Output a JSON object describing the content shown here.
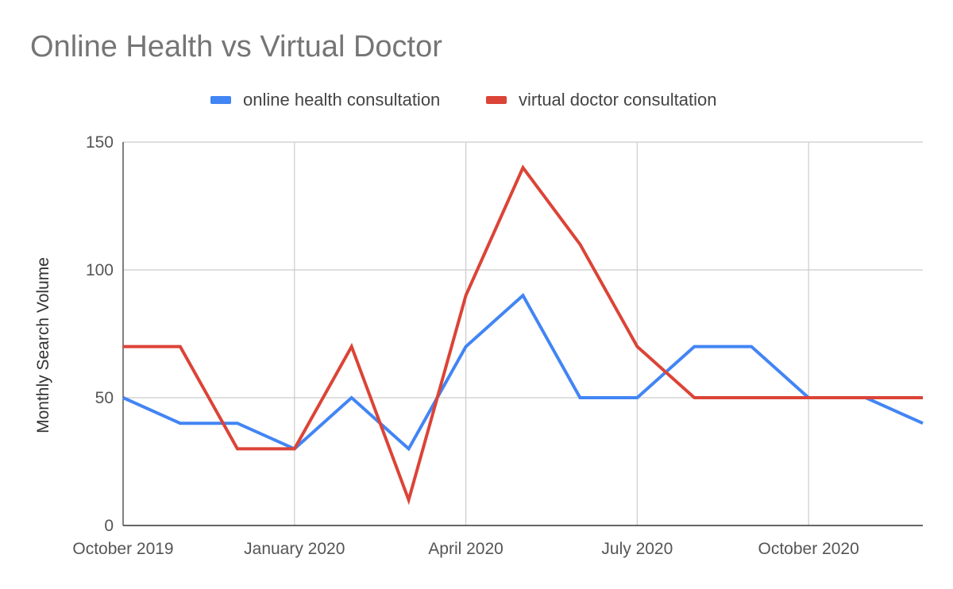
{
  "chart_data": {
    "type": "line",
    "title": "Online Health vs Virtual Doctor",
    "xlabel": "",
    "ylabel": "Monthly Search Volume",
    "x": [
      "2019-10",
      "2019-11",
      "2019-12",
      "2020-01",
      "2020-02",
      "2020-03",
      "2020-04",
      "2020-05",
      "2020-06",
      "2020-07",
      "2020-08",
      "2020-09",
      "2020-10",
      "2020-11",
      "2020-12"
    ],
    "x_ticks": [
      {
        "x": "2019-10",
        "label": "October 2019"
      },
      {
        "x": "2020-01",
        "label": "January 2020"
      },
      {
        "x": "2020-04",
        "label": "April 2020"
      },
      {
        "x": "2020-07",
        "label": "July 2020"
      },
      {
        "x": "2020-10",
        "label": "October 2020"
      }
    ],
    "y_ticks": [
      0,
      50,
      100,
      150
    ],
    "ylim": [
      0,
      150
    ],
    "grid": true,
    "legend_position": "top",
    "series": [
      {
        "name": "online health consultation",
        "color": "#4285f4",
        "values": [
          50,
          40,
          40,
          30,
          50,
          30,
          70,
          90,
          50,
          50,
          70,
          70,
          50,
          50,
          40
        ]
      },
      {
        "name": "virtual doctor consultation",
        "color": "#db4437",
        "values": [
          70,
          70,
          30,
          30,
          70,
          10,
          90,
          140,
          110,
          70,
          50,
          50,
          50,
          50,
          50
        ]
      }
    ]
  }
}
